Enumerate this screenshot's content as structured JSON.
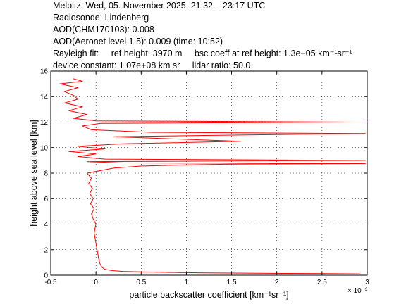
{
  "header": {
    "line1": "Melpitz, Wed, 05. November 2025, 21:32 – 23:17 UTC",
    "line2": "Radiosonde: Lindenberg",
    "line3": "AOD(CHM170103): 0.008",
    "line4": "AOD(Aeronet level 1.5): 0.009   (time: 10:52)",
    "rayleigh_label": "Rayleigh fit:",
    "ref_height": "ref height: 3970 m",
    "bsc_coeff": "bsc coeff at ref height: 1.3e−05 km⁻¹sr⁻¹",
    "device_constant": "device constant: 1.07e+08 km sr",
    "lidar_ratio": "lidar ratio: 50.0"
  },
  "chart_data": {
    "type": "line",
    "title": "",
    "xlabel": "particle backscatter coefficient [km⁻¹sr⁻¹]",
    "x_multiplier": "× 10⁻³",
    "ylabel": "height above sea level [km]",
    "xlim": [
      -0.5,
      3.0
    ],
    "ylim": [
      0,
      16
    ],
    "x_ticks": [
      "-0.5",
      "0",
      "0.5",
      "1",
      "1.5",
      "2",
      "2.5",
      "3"
    ],
    "y_ticks": [
      "0",
      "2",
      "4",
      "6",
      "8",
      "10",
      "12",
      "14",
      "16"
    ],
    "grid": true,
    "series": [
      {
        "color": "#ff0000",
        "points": [
          [
            2.92,
            0.1
          ],
          [
            2.5,
            0.12
          ],
          [
            1.8,
            0.15
          ],
          [
            1.2,
            0.18
          ],
          [
            0.8,
            0.22
          ],
          [
            0.5,
            0.26
          ],
          [
            0.3,
            0.3
          ],
          [
            0.18,
            0.36
          ],
          [
            0.1,
            0.45
          ],
          [
            0.07,
            0.6
          ],
          [
            0.05,
            0.8
          ],
          [
            0.04,
            1.0
          ],
          [
            0.03,
            1.3
          ],
          [
            0.02,
            1.7
          ],
          [
            0.01,
            2.1
          ],
          [
            0.0,
            2.5
          ],
          [
            -0.01,
            2.9
          ],
          [
            -0.02,
            3.3
          ],
          [
            -0.01,
            3.7
          ],
          [
            0.0,
            4.0
          ],
          [
            -0.03,
            4.4
          ],
          [
            -0.05,
            4.8
          ],
          [
            -0.02,
            5.2
          ],
          [
            -0.06,
            5.6
          ],
          [
            -0.03,
            6.0
          ],
          [
            -0.07,
            6.4
          ],
          [
            -0.04,
            6.8
          ],
          [
            -0.08,
            7.2
          ],
          [
            -0.05,
            7.6
          ],
          [
            -0.1,
            8.0
          ],
          [
            0.05,
            8.2
          ],
          [
            0.2,
            8.4
          ],
          [
            0.5,
            8.55
          ],
          [
            1.0,
            8.65
          ],
          [
            1.5,
            8.7
          ],
          [
            2.98,
            8.75
          ],
          [
            0.3,
            8.8
          ],
          [
            -0.1,
            8.9
          ],
          [
            2.98,
            9.0
          ],
          [
            0.1,
            9.1
          ],
          [
            -0.2,
            9.3
          ],
          [
            0.0,
            9.5
          ],
          [
            -0.3,
            9.7
          ],
          [
            0.1,
            9.9
          ],
          [
            -0.2,
            10.1
          ],
          [
            0.3,
            10.3
          ],
          [
            1.6,
            10.5
          ],
          [
            0.8,
            10.7
          ],
          [
            0.2,
            10.85
          ],
          [
            1.2,
            10.95
          ],
          [
            2.98,
            11.1
          ],
          [
            0.6,
            11.2
          ],
          [
            -0.05,
            11.4
          ],
          [
            -0.15,
            11.7
          ],
          [
            0.05,
            11.9
          ],
          [
            2.98,
            12.0
          ],
          [
            0.0,
            12.1
          ],
          [
            -0.25,
            12.3
          ],
          [
            -0.1,
            12.6
          ],
          [
            -0.3,
            12.9
          ],
          [
            -0.15,
            13.2
          ],
          [
            -0.35,
            13.5
          ],
          [
            -0.2,
            13.8
          ],
          [
            -0.25,
            14.1
          ],
          [
            -0.35,
            14.4
          ],
          [
            -0.2,
            14.7
          ],
          [
            -0.4,
            15.0
          ],
          [
            -0.15,
            15.2
          ],
          [
            -0.25,
            15.4
          ]
        ]
      }
    ]
  }
}
